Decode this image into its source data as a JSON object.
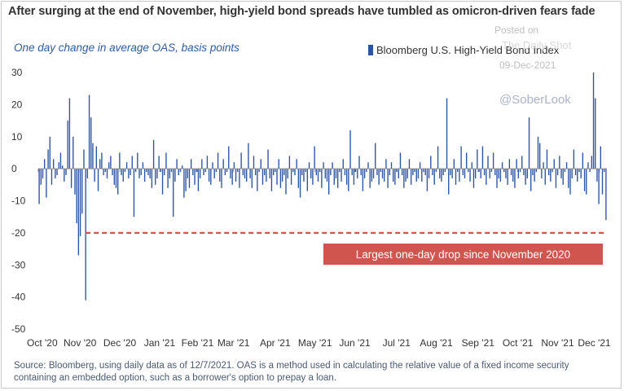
{
  "title": "After surging at the end of November, high-yield bond spreads have tumbled as omicron-driven fears fade",
  "subtitle": "One day change in average OAS, basis points",
  "legend": {
    "label": "Bloomberg U.S. High-Yield Bond Index"
  },
  "watermark": {
    "posted": "Posted on",
    "brand": "The Daily Shot",
    "date": "09-Dec-2021",
    "handle": "@SoberLook"
  },
  "annotation": {
    "label": "Largest one-day drop since November 2020",
    "level": -20
  },
  "source": "Source: Bloomberg, using  daily data as of 12/7/2021. OAS is a method used in calculating the relative value of a fixed income security containing an embedded option, such as a borrower's option to prepay a loan.",
  "colors": {
    "bar": "#2b53a3",
    "annotation_bg": "#d0554f",
    "reference_line": "#d0554f",
    "zero_line": "#8c8c8c"
  },
  "chart_data": {
    "type": "bar",
    "title": "After surging at the end of November, high-yield bond spreads have tumbled as omicron-driven fears fade",
    "ylabel": "One day change in average OAS, basis points",
    "ylim": [
      -50,
      30
    ],
    "yticks": [
      30,
      20,
      10,
      0,
      -10,
      -20,
      -30,
      -40,
      -50
    ],
    "xlim": [
      0,
      300
    ],
    "xticks": [
      {
        "label": "Oct '20",
        "x": 0
      },
      {
        "label": "Nov '20",
        "x": 22
      },
      {
        "label": "Dec '20",
        "x": 43
      },
      {
        "label": "Jan '21",
        "x": 64
      },
      {
        "label": "Feb '21",
        "x": 84
      },
      {
        "label": "Mar '21",
        "x": 103
      },
      {
        "label": "Apr '21",
        "x": 125
      },
      {
        "label": "May '21",
        "x": 146
      },
      {
        "label": "Jun '21",
        "x": 167
      },
      {
        "label": "Jul '21",
        "x": 189
      },
      {
        "label": "Aug '21",
        "x": 210
      },
      {
        "label": "Sep '21",
        "x": 232
      },
      {
        "label": "Oct '21",
        "x": 253
      },
      {
        "label": "Nov '21",
        "x": 274
      },
      {
        "label": "Dec '21",
        "x": 296
      }
    ],
    "reference_line": -20,
    "series": [
      {
        "name": "Bloomberg U.S. High-Yield Bond Index",
        "values": [
          -11,
          -5,
          -3,
          3,
          -9,
          6,
          10,
          -5,
          3,
          -3,
          -2,
          2,
          5,
          1,
          -4,
          -2,
          15,
          22,
          -6,
          10,
          -8,
          -17,
          -27,
          -21,
          -14,
          6,
          -41,
          -3,
          23,
          16,
          8,
          -4,
          7,
          -7,
          3,
          5,
          -2,
          -1,
          -3,
          2,
          4,
          -2,
          -5,
          -6,
          -8,
          5,
          -2,
          -4,
          -1,
          2,
          -3,
          -2,
          4,
          -15,
          -1,
          5,
          -3,
          -2,
          2,
          -4,
          -1,
          -2,
          -3,
          -6,
          9,
          -5,
          -3,
          4,
          -1,
          -8,
          -2,
          5,
          -6,
          -3,
          -1,
          -15,
          -4,
          3,
          -2,
          -1,
          1,
          -9,
          -7,
          -3,
          -6,
          3,
          -2,
          -5,
          -1,
          -7,
          -3,
          3,
          -2,
          -1,
          4,
          -4,
          -5,
          2,
          -3,
          -1,
          5,
          -4,
          -6,
          3,
          -2,
          -1,
          7,
          -3,
          -5,
          2,
          -4,
          -1,
          -6,
          5,
          -2,
          -3,
          -4,
          8,
          -3,
          -6,
          4,
          -2,
          -7,
          -1,
          3,
          -5,
          -2,
          -4,
          6,
          -3,
          -7,
          -2,
          -1,
          -5,
          3,
          -6,
          -4,
          -2,
          -8,
          -3,
          4,
          -5,
          -1,
          -2,
          3,
          -6,
          -9,
          -2,
          -4,
          -1,
          -7,
          2,
          -3,
          -5,
          7,
          -2,
          -4,
          -1,
          -6,
          2,
          -3,
          -4,
          -8,
          -2,
          2,
          -5,
          -3,
          -6,
          -1,
          -4,
          3,
          -2,
          -5,
          -7,
          12,
          -2,
          -5,
          -1,
          -3,
          4,
          -2,
          -7,
          -3,
          -1,
          2,
          -6,
          -4,
          -3,
          8,
          -2,
          -5,
          -1,
          -3,
          -4,
          3,
          -6,
          -2,
          2,
          -4,
          -5,
          -1,
          -3,
          5,
          -2,
          -6,
          -4,
          -3,
          3,
          -5,
          -2,
          -1,
          -4,
          -3,
          2,
          -4,
          -1,
          -2,
          -7,
          -3,
          4,
          -2,
          -5,
          -1,
          7,
          -3,
          -4,
          -2,
          -1,
          22,
          -8,
          -2,
          -3,
          3,
          -5,
          -1,
          -4,
          7,
          -2,
          -3,
          5,
          -1,
          -4,
          2,
          -6,
          -3,
          6,
          -1,
          -3,
          7,
          -2,
          -5,
          4,
          -3,
          -1,
          5,
          -2,
          -6,
          -3,
          -4,
          2,
          -1,
          -3,
          -5,
          3,
          -2,
          -4,
          -6,
          3,
          -3,
          -1,
          4,
          -2,
          -5,
          -3,
          16,
          -7,
          -2,
          -4,
          -1,
          10,
          8,
          -3,
          2,
          -5,
          6,
          -2,
          -4,
          -1,
          3,
          -6,
          -2,
          4,
          -3,
          -5,
          -1,
          2,
          -6,
          -8,
          -3,
          6,
          -2,
          -4,
          -1,
          -3,
          5,
          -7,
          -8,
          2,
          -1,
          4,
          30,
          22,
          -4,
          -11,
          7,
          -8,
          -1,
          -16
        ]
      }
    ]
  }
}
